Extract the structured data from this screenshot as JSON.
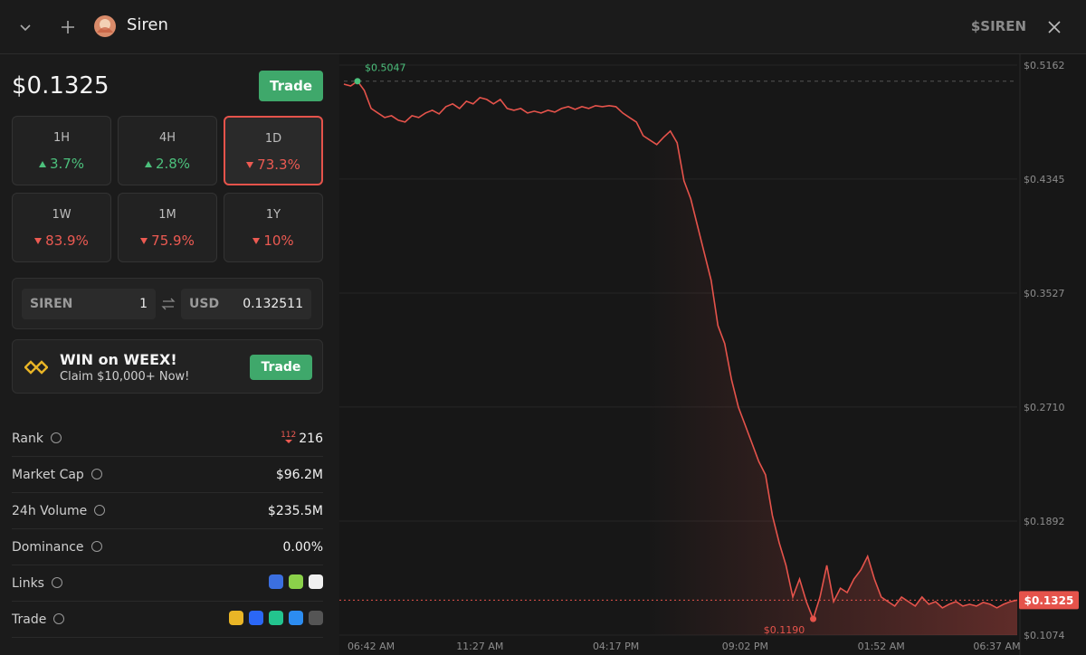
{
  "header": {
    "title": "Siren",
    "symbol": "$SIREN"
  },
  "price": "$0.1325",
  "trade_button": "Trade",
  "changes": [
    {
      "period": "1H",
      "value": "3.7%",
      "direction": "up"
    },
    {
      "period": "4H",
      "value": "2.8%",
      "direction": "up"
    },
    {
      "period": "1D",
      "value": "73.3%",
      "direction": "down",
      "selected": true
    },
    {
      "period": "1W",
      "value": "83.9%",
      "direction": "down"
    },
    {
      "period": "1M",
      "value": "75.9%",
      "direction": "down"
    },
    {
      "period": "1Y",
      "value": "10%",
      "direction": "down"
    }
  ],
  "converter": {
    "from_symbol": "SIREN",
    "from_amount": "1",
    "to_symbol": "USD",
    "to_amount": "0.132511"
  },
  "promo": {
    "title": "WIN on WEEX!",
    "subtitle": "Claim $10,000+ Now!",
    "button": "Trade"
  },
  "stats": [
    {
      "label": "Rank",
      "value": "216",
      "change": "112"
    },
    {
      "label": "Market Cap",
      "value": "$96.2M"
    },
    {
      "label": "24h Volume",
      "value": "$235.5M"
    },
    {
      "label": "Dominance",
      "value": "0.00%"
    },
    {
      "label": "Links"
    },
    {
      "label": "Trade"
    }
  ],
  "chart_data": {
    "type": "line",
    "color": "#e5534b",
    "categories": [
      null,
      null,
      null,
      null,
      "06:42 AM",
      null,
      null,
      null,
      null,
      null,
      null,
      null,
      null,
      null,
      null,
      null,
      null,
      null,
      null,
      null,
      "11:27 AM",
      null,
      null,
      null,
      null,
      null,
      null,
      null,
      null,
      null,
      null,
      null,
      null,
      null,
      null,
      null,
      null,
      null,
      null,
      null,
      "04:17 PM",
      null,
      null,
      null,
      null,
      null,
      null,
      null,
      null,
      null,
      null,
      null,
      null,
      null,
      null,
      null,
      null,
      null,
      null,
      "09:02 PM",
      null,
      null,
      null,
      null,
      null,
      null,
      null,
      null,
      null,
      null,
      null,
      null,
      null,
      null,
      null,
      null,
      null,
      null,
      null,
      "01:52 AM",
      null,
      null,
      null,
      null,
      null,
      null,
      null,
      null,
      null,
      null,
      null,
      null,
      null,
      null,
      null,
      null,
      "06:37 AM",
      null,
      null,
      null
    ],
    "values": [
      0.5026,
      0.5013,
      0.5047,
      0.4981,
      0.4851,
      0.4819,
      0.4786,
      0.4799,
      0.4767,
      0.4754,
      0.4799,
      0.4786,
      0.4819,
      0.4838,
      0.4812,
      0.4864,
      0.4884,
      0.4851,
      0.4903,
      0.4884,
      0.4929,
      0.4916,
      0.4884,
      0.4916,
      0.4851,
      0.4838,
      0.4851,
      0.4819,
      0.4832,
      0.4819,
      0.4838,
      0.4825,
      0.4851,
      0.4864,
      0.4845,
      0.4864,
      0.4851,
      0.4871,
      0.4864,
      0.4871,
      0.4864,
      0.4819,
      0.4786,
      0.4754,
      0.4656,
      0.4624,
      0.4592,
      0.4644,
      0.4689,
      0.4605,
      0.4332,
      0.4202,
      0.4007,
      0.3813,
      0.3618,
      0.3294,
      0.3164,
      0.2904,
      0.2709,
      0.258,
      0.245,
      0.232,
      0.2223,
      0.1931,
      0.1736,
      0.1574,
      0.1347,
      0.1476,
      0.1314,
      0.119,
      0.1347,
      0.1574,
      0.1314,
      0.1411,
      0.1379,
      0.1476,
      0.1541,
      0.1639,
      0.1476,
      0.1347,
      0.1314,
      0.1282,
      0.1347,
      0.1314,
      0.1282,
      0.1347,
      0.1295,
      0.1314,
      0.1269,
      0.1295,
      0.1314,
      0.1282,
      0.1295,
      0.1282,
      0.1308,
      0.1295,
      0.1269,
      0.1295,
      0.1314,
      0.1325
    ],
    "ylim": [
      0.1074,
      0.5162
    ],
    "yticks": [
      {
        "value": 0.5162,
        "label": "$0.5162"
      },
      {
        "value": 0.4345,
        "label": "$0.4345"
      },
      {
        "value": 0.3527,
        "label": "$0.3527"
      },
      {
        "value": 0.271,
        "label": "$0.2710"
      },
      {
        "value": 0.1892,
        "label": "$0.1892"
      },
      {
        "value": 0.1074,
        "label": "$0.1074"
      }
    ],
    "grid": true,
    "high_label": "$0.5047",
    "low_label": "$0.1190",
    "last_label": "$0.1325"
  }
}
